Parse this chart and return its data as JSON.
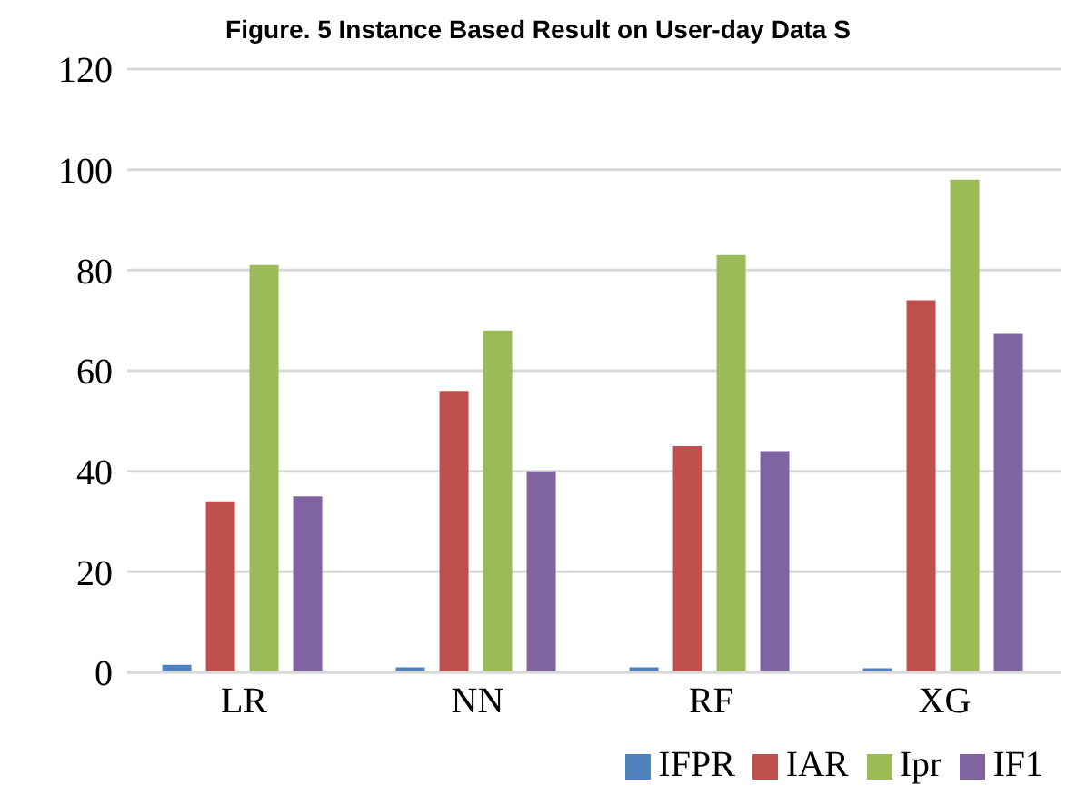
{
  "chart_data": {
    "type": "bar",
    "title": "Figure. 5 Instance Based Result on User-day Data S",
    "categories": [
      "LR",
      "NN",
      "RF",
      "XG"
    ],
    "series": [
      {
        "name": "IFPR",
        "color": "#4f81bd",
        "values": [
          1.5,
          1,
          1,
          0.8
        ]
      },
      {
        "name": "IAR",
        "color": "#c0504d",
        "values": [
          34,
          56,
          45,
          74
        ]
      },
      {
        "name": "Ipr",
        "color": "#9bbb59",
        "values": [
          81,
          68,
          83,
          98
        ]
      },
      {
        "name": "IF1",
        "color": "#8064a2",
        "values": [
          35,
          40,
          44,
          67.3
        ]
      }
    ],
    "ylim": [
      0,
      120
    ],
    "yticks": [
      0,
      20,
      40,
      60,
      80,
      100,
      120
    ],
    "grid": "y",
    "legend": "bottom right"
  }
}
